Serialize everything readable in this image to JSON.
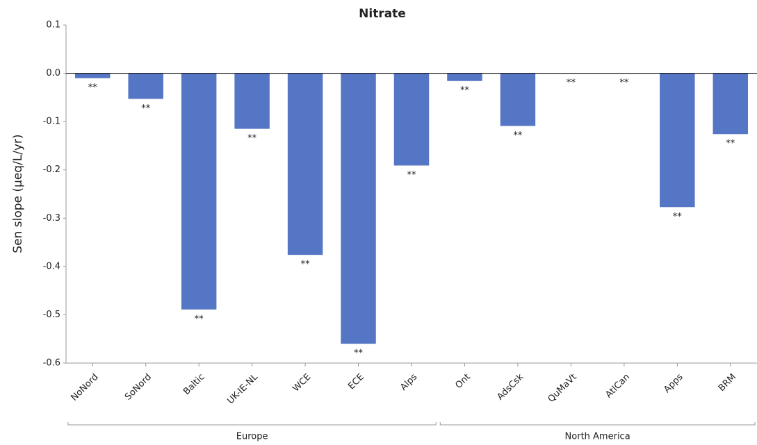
{
  "chart_data": {
    "type": "bar",
    "title": "Nitrate",
    "ylabel": "Sen slope (μeq/L/yr)",
    "categories": [
      "NoNord",
      "SoNord",
      "Baltic",
      "UK-IE-NL",
      "WCE",
      "ECE",
      "Alps",
      "Ont",
      "AdsCsk",
      "QuMaVt",
      "AtlCan",
      "Apps",
      "BRM"
    ],
    "values": [
      -0.01,
      -0.053,
      -0.489,
      -0.115,
      -0.376,
      -0.56,
      -0.191,
      -0.016,
      -0.109,
      0,
      0,
      -0.277,
      -0.126
    ],
    "annotations": [
      "**",
      "**",
      "**",
      "**",
      "**",
      "**",
      "**",
      "**",
      "**",
      "**",
      "**",
      "**",
      "**"
    ],
    "groups": [
      {
        "name": "Europe",
        "members": [
          "NoNord",
          "SoNord",
          "Baltic",
          "UK-IE-NL",
          "WCE",
          "ECE",
          "Alps"
        ]
      },
      {
        "name": "North America",
        "members": [
          "Ont",
          "AdsCsk",
          "QuMaVt",
          "AtlCan",
          "Apps",
          "BRM"
        ]
      }
    ],
    "color": "#5576c5",
    "ylim": [
      -0.6,
      0.1
    ],
    "yticks": [
      0.1,
      {
        "value": 0,
        "label": "0.0"
      },
      -0.1,
      -0.2,
      -0.3,
      -0.4,
      -0.5,
      -0.6
    ],
    "grid": false
  }
}
